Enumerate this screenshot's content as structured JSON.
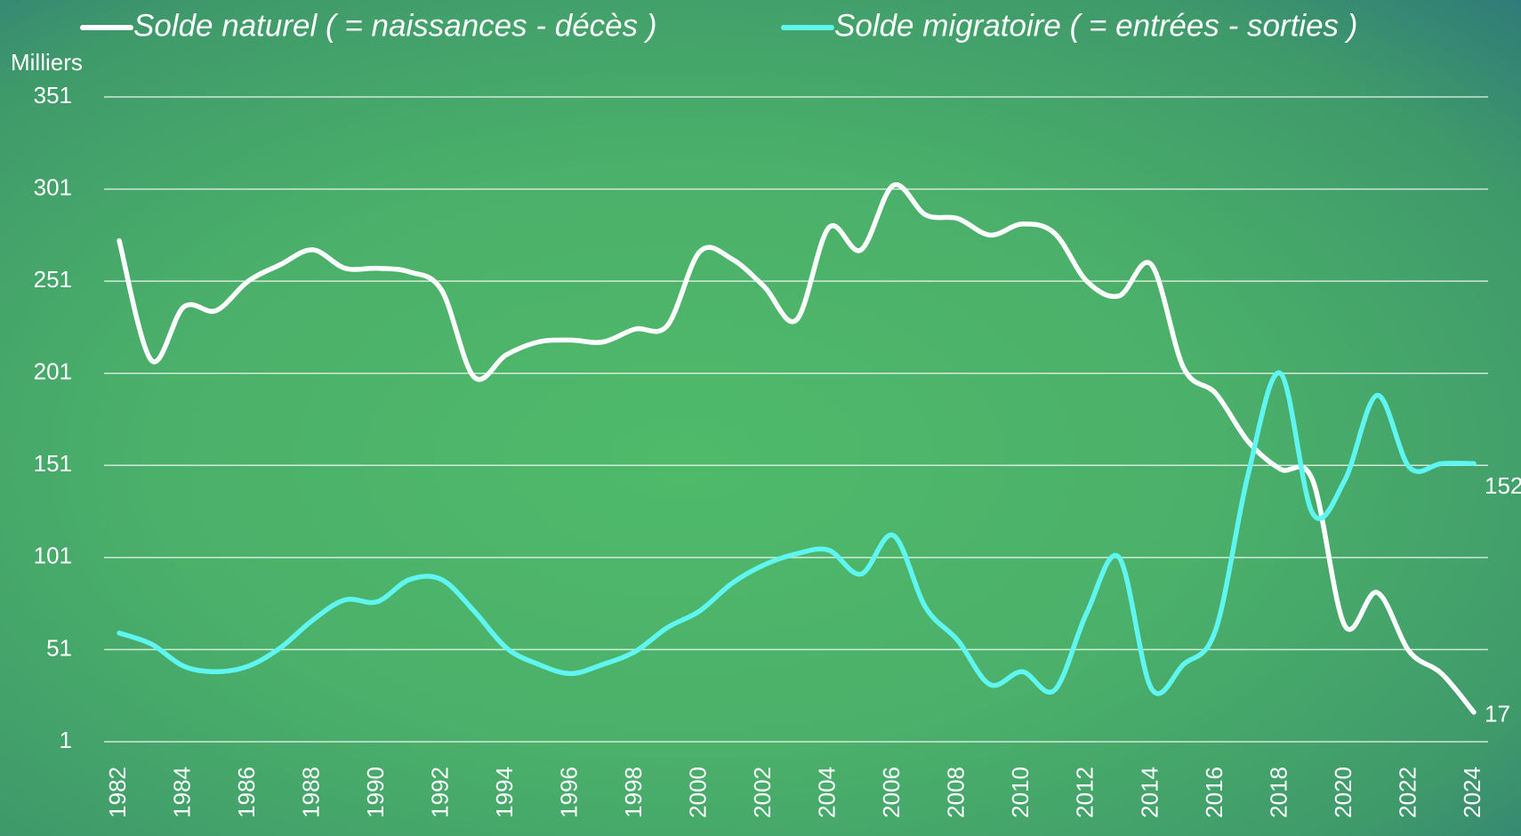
{
  "chart_data": {
    "type": "line",
    "y_axis_label": "Milliers",
    "x": [
      1982,
      1983,
      1984,
      1985,
      1986,
      1987,
      1988,
      1989,
      1990,
      1991,
      1992,
      1993,
      1994,
      1995,
      1996,
      1997,
      1998,
      1999,
      2000,
      2001,
      2002,
      2003,
      2004,
      2005,
      2006,
      2007,
      2008,
      2009,
      2010,
      2011,
      2012,
      2013,
      2014,
      2015,
      2016,
      2017,
      2018,
      2019,
      2020,
      2021,
      2022,
      2023,
      2024
    ],
    "xlim": [
      1982,
      2024
    ],
    "xticks": [
      1982,
      1984,
      1986,
      1988,
      1990,
      1992,
      1994,
      1996,
      1998,
      2000,
      2002,
      2004,
      2006,
      2008,
      2010,
      2012,
      2014,
      2016,
      2018,
      2020,
      2022,
      2024
    ],
    "ylim": [
      1,
      351
    ],
    "yticks": [
      1,
      51,
      101,
      151,
      201,
      251,
      301,
      351
    ],
    "grid": true,
    "legend": "top",
    "series": [
      {
        "name": "Solde naturel ( = naissances - décès )",
        "color": "#ffffff",
        "values": [
          273,
          208,
          237,
          235,
          251,
          260,
          268,
          258,
          258,
          256,
          246,
          199,
          211,
          218,
          219,
          218,
          225,
          227,
          267,
          263,
          248,
          230,
          280,
          268,
          303,
          287,
          285,
          276,
          282,
          277,
          251,
          243,
          260,
          204,
          190,
          164,
          149,
          143,
          64,
          82,
          50,
          38,
          17
        ]
      },
      {
        "name": "Solde migratoire ( = entrées - sorties )",
        "color": "#5ff5f0",
        "values": [
          60,
          54,
          42,
          39,
          42,
          52,
          67,
          78,
          77,
          89,
          89,
          72,
          52,
          43,
          38,
          43,
          50,
          63,
          72,
          87,
          97,
          103,
          105,
          92,
          113,
          74,
          56,
          32,
          39,
          29,
          71,
          101,
          30,
          43,
          62,
          146,
          201,
          125,
          143,
          189,
          150,
          152,
          152
        ]
      }
    ]
  }
}
